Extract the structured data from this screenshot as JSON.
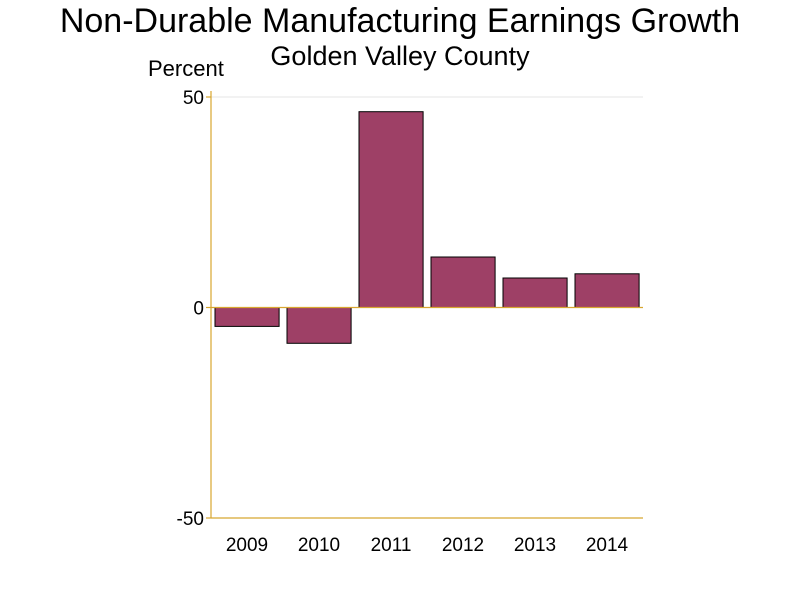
{
  "chart_data": {
    "type": "bar",
    "title": "Non-Durable Manufacturing Earnings Growth",
    "subtitle": "Golden Valley County",
    "ylabel": "Percent",
    "categories": [
      "2009",
      "2010",
      "2011",
      "2012",
      "2013",
      "2014"
    ],
    "values": [
      -4.5,
      -8.5,
      46.5,
      12,
      7,
      8
    ],
    "ylim": [
      -50,
      50
    ],
    "yticks": [
      50,
      0,
      -50
    ],
    "grid": true,
    "colors": {
      "bar_fill": "#9e4066",
      "bar_stroke": "#000000",
      "axis": "#d8a630",
      "gridline": "#e4e4e4"
    }
  }
}
